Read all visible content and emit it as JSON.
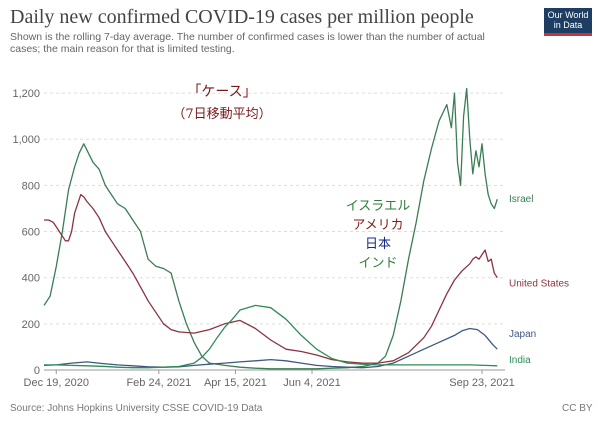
{
  "header": {
    "title": "Daily new confirmed COVID-19 cases per million people",
    "subtitle": "Shown is the rolling 7-day average. The number of confirmed cases is lower than the number of actual cases; the main reason for that is limited testing.",
    "logo_line1": "Our World",
    "logo_line2": "in Data"
  },
  "footer": {
    "source": "Source: Johns Hopkins University CSSE COVID-19 Data",
    "license": "CC BY"
  },
  "annotations": {
    "cases_label": "「ケース」",
    "average_label": "（7日移動平均）",
    "legend_ja": [
      {
        "text": "イスラエル",
        "color": "#2e7d3a"
      },
      {
        "text": "アメリカ",
        "color": "#8b1a1a"
      },
      {
        "text": "日本",
        "color": "#1a2a8b"
      },
      {
        "text": "インド",
        "color": "#2e7d3a"
      }
    ]
  },
  "chart_data": {
    "type": "line",
    "y_ticks": [
      0,
      200,
      400,
      600,
      800,
      1000,
      1200
    ],
    "y_tick_labels": [
      "0",
      "200",
      "400",
      "600",
      "800",
      "1,000",
      "1,200"
    ],
    "x_tick_labels": [
      "Dec 19, 2020",
      "Feb 24, 2021",
      "Apr 15, 2021",
      "Jun 4, 2021",
      "Sep 23, 2021"
    ],
    "x_tick_positions": [
      0,
      67,
      117,
      167,
      278
    ],
    "x_range": [
      -8,
      293
    ],
    "ylim": [
      0,
      1300
    ],
    "grid": "horizontal-dashed",
    "series": [
      {
        "name": "Israel",
        "color": "#3a7d55",
        "x": [
          -8,
          -4,
          0,
          4,
          8,
          12,
          15,
          18,
          21,
          24,
          28,
          32,
          36,
          40,
          45,
          50,
          55,
          60,
          65,
          70,
          75,
          80,
          85,
          90,
          95,
          100,
          110,
          120,
          130,
          140,
          150,
          160,
          170,
          180,
          190,
          200,
          210,
          215,
          220,
          225,
          230,
          235,
          240,
          245,
          250,
          255,
          258,
          260,
          262,
          264,
          266,
          268,
          270,
          272,
          274,
          276,
          278,
          280,
          282,
          284,
          286,
          288
        ],
        "y": [
          280,
          320,
          450,
          600,
          780,
          880,
          940,
          980,
          940,
          900,
          870,
          800,
          760,
          720,
          700,
          650,
          600,
          480,
          450,
          440,
          420,
          300,
          200,
          120,
          60,
          30,
          20,
          12,
          8,
          5,
          5,
          5,
          5,
          8,
          10,
          15,
          30,
          60,
          150,
          300,
          480,
          640,
          820,
          960,
          1080,
          1150,
          1050,
          1200,
          900,
          800,
          1100,
          1220,
          1000,
          850,
          950,
          880,
          980,
          850,
          760,
          720,
          700,
          740
        ]
      },
      {
        "name": "United States",
        "color": "#8b3340",
        "x": [
          -8,
          -5,
          -2,
          0,
          2,
          4,
          6,
          8,
          10,
          12,
          14,
          16,
          18,
          20,
          24,
          28,
          32,
          36,
          40,
          45,
          50,
          55,
          60,
          65,
          70,
          75,
          80,
          90,
          100,
          110,
          120,
          130,
          140,
          150,
          160,
          170,
          180,
          190,
          200,
          210,
          220,
          230,
          240,
          245,
          250,
          255,
          260,
          265,
          270,
          272,
          274,
          276,
          278,
          280,
          282,
          284,
          286,
          288
        ],
        "y": [
          650,
          650,
          640,
          620,
          600,
          580,
          560,
          560,
          600,
          680,
          720,
          760,
          750,
          730,
          700,
          660,
          600,
          560,
          520,
          470,
          420,
          360,
          300,
          250,
          200,
          175,
          165,
          160,
          175,
          200,
          215,
          180,
          130,
          90,
          80,
          65,
          45,
          35,
          30,
          30,
          40,
          75,
          140,
          190,
          260,
          330,
          390,
          430,
          460,
          480,
          490,
          480,
          500,
          520,
          470,
          480,
          420,
          400
        ]
      },
      {
        "name": "Japan",
        "color": "#3d5a80",
        "x": [
          -8,
          0,
          10,
          20,
          30,
          40,
          50,
          60,
          70,
          80,
          90,
          100,
          110,
          120,
          130,
          140,
          150,
          160,
          170,
          180,
          190,
          200,
          210,
          220,
          230,
          240,
          250,
          260,
          265,
          270,
          275,
          280,
          285,
          288
        ],
        "y": [
          20,
          22,
          30,
          35,
          28,
          22,
          18,
          14,
          12,
          14,
          20,
          25,
          30,
          35,
          40,
          45,
          40,
          30,
          20,
          15,
          12,
          10,
          15,
          30,
          60,
          90,
          120,
          150,
          170,
          180,
          175,
          150,
          110,
          90
        ]
      },
      {
        "name": "India",
        "color": "#2e8b57",
        "x": [
          -8,
          0,
          10,
          20,
          30,
          40,
          50,
          60,
          70,
          80,
          90,
          95,
          100,
          105,
          110,
          115,
          120,
          130,
          140,
          150,
          160,
          170,
          180,
          190,
          200,
          210,
          220,
          230,
          240,
          250,
          260,
          270,
          280,
          288
        ],
        "y": [
          22,
          22,
          20,
          18,
          16,
          12,
          10,
          10,
          12,
          15,
          30,
          55,
          90,
          140,
          185,
          220,
          260,
          280,
          270,
          220,
          150,
          90,
          50,
          30,
          25,
          22,
          22,
          22,
          22,
          22,
          22,
          22,
          20,
          18
        ]
      }
    ],
    "series_labels": [
      "Israel",
      "United States",
      "Japan",
      "India"
    ]
  }
}
